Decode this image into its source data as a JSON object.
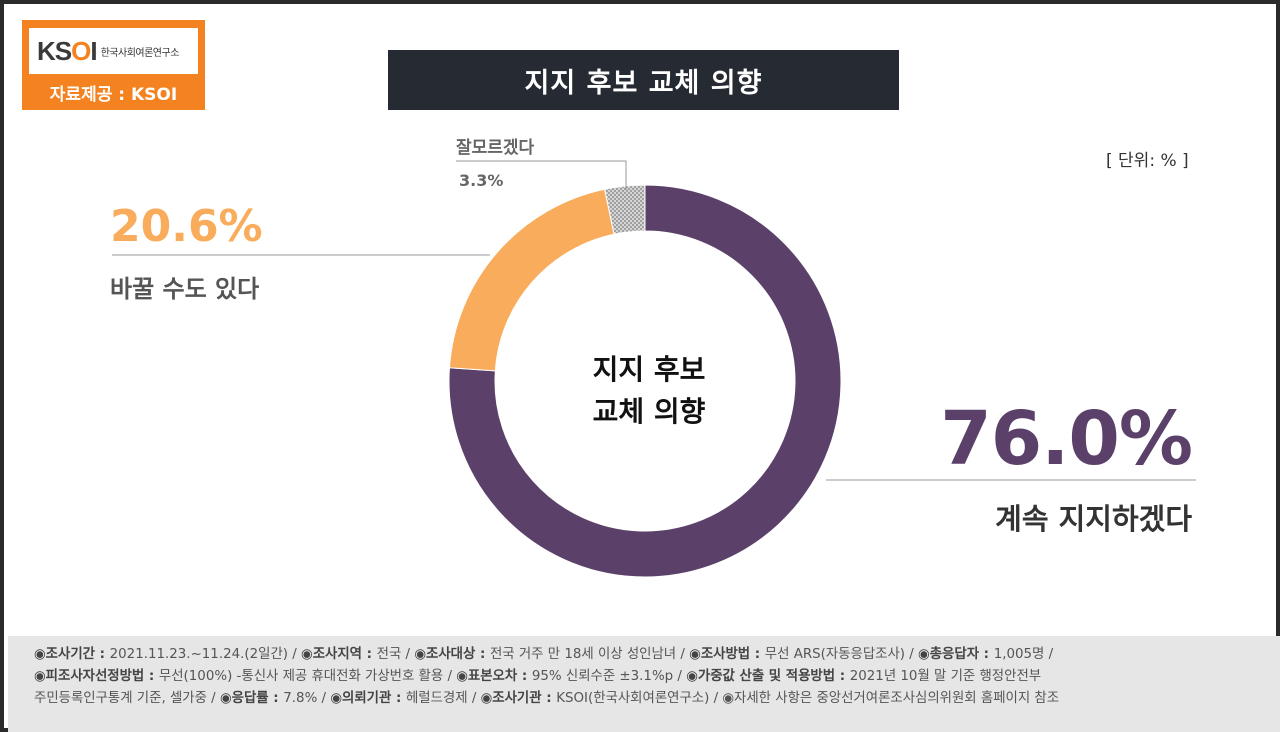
{
  "logo": {
    "mark_k": "K",
    "mark_s": "S",
    "mark_o": "O",
    "mark_i": "I",
    "sub": "한국사회여론연구소",
    "caption": "자료제공 : KSOI"
  },
  "header": {
    "title": "지지 후보 교체 의향"
  },
  "unit": "[ 단위: % ]",
  "center": {
    "line1": "지지 후보",
    "line2": "교체 의향"
  },
  "chart_data": {
    "type": "pie",
    "slices": [
      {
        "label": "계속 지지하겠다",
        "value": 76.0,
        "value_label": "76.0%",
        "color": "#5b4169"
      },
      {
        "label": "바꿀 수도 있다",
        "value": 20.6,
        "value_label": "20.6%",
        "color": "#f9ac5b"
      },
      {
        "label": "잘모르겠다",
        "value": 3.3,
        "value_label": "3.3%",
        "color": "#c8c8c8"
      }
    ]
  },
  "footer": {
    "rows": [
      [
        {
          "k": "◉조사기간 : ",
          "v": "2021.11.23.~11.24.(2일간)  / "
        },
        {
          "k": "◉조사지역 : ",
          "v": "전국 / "
        },
        {
          "k": "◉조사대상 : ",
          "v": "전국 거주 만 18세 이상 성인남녀 / "
        },
        {
          "k": "◉조사방법 : ",
          "v": "무선 ARS(자동응답조사) / "
        },
        {
          "k": "◉총응답자 : ",
          "v": "1,005명 /"
        }
      ],
      [
        {
          "k": "◉피조사자선정방법 : ",
          "v": "무선(100%) -통신사 제공 휴대전화 가상번호 활용 / "
        },
        {
          "k": "◉표본오차 : ",
          "v": "95% 신뢰수준 ±3.1%p / "
        },
        {
          "k": "◉가중값 산출 및 적용방법 : ",
          "v": "2021년 10월 말 기준 행정안전부"
        }
      ],
      [
        {
          "k": "",
          "v": "주민등록인구통계 기준, 셀가중 / "
        },
        {
          "k": "◉응답률 : ",
          "v": "7.8% / "
        },
        {
          "k": "◉의뢰기관 : ",
          "v": "헤럴드경제 / "
        },
        {
          "k": "◉조사기관 : ",
          "v": "KSOI(한국사회여론연구소) / "
        },
        {
          "k": "",
          "v": "◉자세한 사항은 중앙선거여론조사심의위원회 홈페이지 참조"
        }
      ]
    ]
  }
}
